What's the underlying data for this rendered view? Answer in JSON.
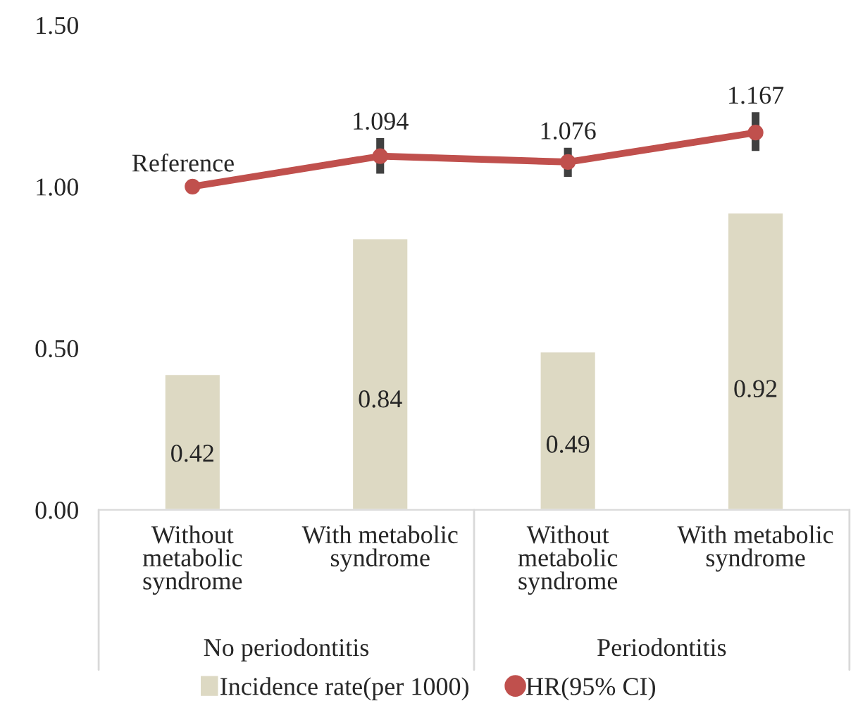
{
  "chart_data": {
    "type": "bar",
    "categories": [
      "Without\nmetabolic\nsyndrome",
      "With metabolic\nsyndrome",
      "Without\nmetabolic\nsyndrome",
      "With metabolic\nsyndrome"
    ],
    "series": [
      {
        "name": "Incidence rate(per 1000)",
        "color": "#ddd9c3",
        "values": [
          0.42,
          0.84,
          0.49,
          0.92
        ],
        "value_labels": [
          "0.42",
          "0.84",
          "0.49",
          "0.92"
        ]
      },
      {
        "name": "HR(95% CI)",
        "type": "line",
        "color": "#c0504d",
        "marker": "circle",
        "values": [
          1.0,
          1.094,
          1.076,
          1.167
        ],
        "errors": [
          null,
          [
            1.04,
            1.15
          ],
          [
            1.03,
            1.12
          ],
          [
            1.11,
            1.23
          ]
        ],
        "value_labels": [
          "Reference",
          "1.094",
          "1.076",
          "1.167"
        ]
      }
    ],
    "ylim": [
      0,
      1.5
    ],
    "yticks": [
      {
        "value": 0,
        "label": "0.00"
      },
      {
        "value": 0.5,
        "label": "0.50"
      },
      {
        "value": 1.0,
        "label": "1.00"
      },
      {
        "value": 1.5,
        "label": "1.50"
      }
    ],
    "annotations": [
      "No periodontitis",
      "Periodontitis"
    ],
    "legend": "bottom",
    "grid": false
  }
}
